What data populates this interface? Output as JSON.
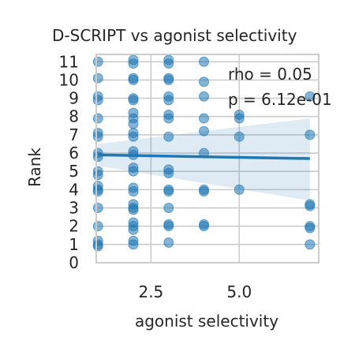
{
  "chart_data": {
    "type": "scatter",
    "title": "D-SCRIPT vs agonist selectivity",
    "xlabel": "agonist selectivity",
    "ylabel": "Rank",
    "xlim": [
      0.95,
      7.25
    ],
    "ylim": [
      0,
      11.4
    ],
    "xticks": [
      2.5,
      5.0
    ],
    "xtick_labels": [
      "2.5",
      "5.0"
    ],
    "yticks": [
      0,
      1,
      2,
      3,
      4,
      5,
      6,
      7,
      8,
      9,
      10,
      11
    ],
    "ytick_labels": [
      "0",
      "1",
      "2",
      "3",
      "4",
      "5",
      "6",
      "7",
      "8",
      "9",
      "10",
      "11"
    ],
    "grid": true,
    "annotations": [
      "rho = 0.05",
      "p = 6.12e-01"
    ],
    "regression": {
      "x": [
        1.0,
        7.0
      ],
      "y": [
        5.9,
        5.7
      ],
      "ci_lower": [
        5.3,
        3.4
      ],
      "ci_upper": [
        6.5,
        7.9
      ]
    },
    "points": [
      [
        1.0,
        11.0
      ],
      [
        1.0,
        10.1
      ],
      [
        1.0,
        9.1
      ],
      [
        1.0,
        8.9
      ],
      [
        1.0,
        7.9
      ],
      [
        1.0,
        7.1
      ],
      [
        1.0,
        6.9
      ],
      [
        1.0,
        6.0
      ],
      [
        1.0,
        5.8
      ],
      [
        1.0,
        5.0
      ],
      [
        1.0,
        4.8
      ],
      [
        1.0,
        4.2
      ],
      [
        1.0,
        4.0
      ],
      [
        1.0,
        3.9
      ],
      [
        1.0,
        3.0
      ],
      [
        1.0,
        2.0
      ],
      [
        1.0,
        1.2
      ],
      [
        1.0,
        1.0
      ],
      [
        1.0,
        0.9
      ],
      [
        2.0,
        11.1
      ],
      [
        2.0,
        10.9
      ],
      [
        2.0,
        10.1
      ],
      [
        2.0,
        10.0
      ],
      [
        2.0,
        9.0
      ],
      [
        2.0,
        8.9
      ],
      [
        2.0,
        8.2
      ],
      [
        2.0,
        7.9
      ],
      [
        2.0,
        7.6
      ],
      [
        2.0,
        7.1
      ],
      [
        2.0,
        6.9
      ],
      [
        2.0,
        6.1
      ],
      [
        2.0,
        5.9
      ],
      [
        2.0,
        5.2
      ],
      [
        2.0,
        5.0
      ],
      [
        2.0,
        4.1
      ],
      [
        2.0,
        3.9
      ],
      [
        2.0,
        3.2
      ],
      [
        2.0,
        3.0
      ],
      [
        2.0,
        2.9
      ],
      [
        2.0,
        2.2
      ],
      [
        2.0,
        2.0
      ],
      [
        2.0,
        1.8
      ],
      [
        2.0,
        1.2
      ],
      [
        2.0,
        1.0
      ],
      [
        3.0,
        11.1
      ],
      [
        3.0,
        10.9
      ],
      [
        3.0,
        10.1
      ],
      [
        3.0,
        10.0
      ],
      [
        3.0,
        9.1
      ],
      [
        3.0,
        8.9
      ],
      [
        3.0,
        8.1
      ],
      [
        3.0,
        7.9
      ],
      [
        3.0,
        6.9
      ],
      [
        3.0,
        5.1
      ],
      [
        3.0,
        4.9
      ],
      [
        3.0,
        4.0
      ],
      [
        3.0,
        3.9
      ],
      [
        3.0,
        3.0
      ],
      [
        3.0,
        2.1
      ],
      [
        3.0,
        2.0
      ],
      [
        3.0,
        1.1
      ],
      [
        4.0,
        11.0
      ],
      [
        4.0,
        9.9
      ],
      [
        4.0,
        9.1
      ],
      [
        4.0,
        7.9
      ],
      [
        4.0,
        7.2
      ],
      [
        4.0,
        6.0
      ],
      [
        4.0,
        4.0
      ],
      [
        4.0,
        3.9
      ],
      [
        4.0,
        2.1
      ],
      [
        4.0,
        2.0
      ],
      [
        5.0,
        8.1
      ],
      [
        5.0,
        7.9
      ],
      [
        5.0,
        6.9
      ],
      [
        5.0,
        4.0
      ],
      [
        7.0,
        9.1
      ],
      [
        7.0,
        7.0
      ],
      [
        7.0,
        3.2
      ],
      [
        7.0,
        3.1
      ],
      [
        7.0,
        2.0
      ],
      [
        7.0,
        1.9
      ],
      [
        7.0,
        1.0
      ]
    ]
  }
}
